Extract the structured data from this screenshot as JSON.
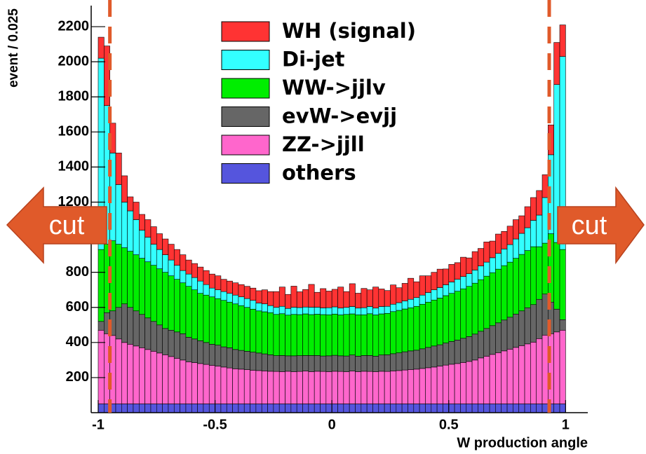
{
  "chart_data": {
    "type": "stacked_histogram",
    "x_label": "W production angle",
    "y_label": "event / 0.025",
    "xlim": [
      -1.03,
      1.095
    ],
    "ylim": [
      0,
      2320
    ],
    "xticks": [
      -1,
      -0.5,
      0,
      0.5,
      1
    ],
    "yticks": [
      200,
      400,
      600,
      800,
      1000,
      1200,
      1400,
      1600,
      1800,
      2000,
      2200
    ],
    "bins": [
      -1,
      -0.975,
      -0.95,
      -0.925,
      -0.9,
      -0.875,
      -0.85,
      -0.825,
      -0.8,
      -0.775,
      -0.75,
      -0.725,
      -0.7,
      -0.675,
      -0.65,
      -0.625,
      -0.6,
      -0.575,
      -0.55,
      -0.525,
      -0.5,
      -0.475,
      -0.45,
      -0.425,
      -0.4,
      -0.375,
      -0.35,
      -0.325,
      -0.3,
      -0.275,
      -0.25,
      -0.225,
      -0.2,
      -0.175,
      -0.15,
      -0.125,
      -0.1,
      -0.075,
      -0.05,
      -0.025,
      0,
      0.025,
      0.05,
      0.075,
      0.1,
      0.125,
      0.15,
      0.175,
      0.2,
      0.225,
      0.25,
      0.275,
      0.3,
      0.325,
      0.35,
      0.375,
      0.4,
      0.425,
      0.45,
      0.475,
      0.5,
      0.525,
      0.55,
      0.575,
      0.6,
      0.625,
      0.65,
      0.675,
      0.7,
      0.725,
      0.75,
      0.775,
      0.8,
      0.825,
      0.85,
      0.875,
      0.9,
      0.925,
      0.95,
      0.975,
      1
    ],
    "series": [
      {
        "name": "WH (signal)",
        "color": "#ff3333",
        "values": [
          120,
          340,
          170,
          180,
          150,
          80,
          100,
          90,
          100,
          100,
          90,
          90,
          90,
          90,
          90,
          80,
          80,
          80,
          80,
          80,
          80,
          70,
          70,
          70,
          70,
          70,
          70,
          70,
          80,
          80,
          90,
          110,
          80,
          120,
          90,
          100,
          130,
          85,
          110,
          95,
          100,
          120,
          90,
          130,
          85,
          110,
          95,
          120,
          100,
          90,
          110,
          85,
          100,
          120,
          90,
          110,
          95,
          100,
          105,
          90,
          100,
          95,
          110,
          90,
          105,
          100,
          115,
          95,
          110,
          100,
          105,
          110,
          100,
          120,
          130,
          140,
          130,
          170,
          240,
          180
        ]
      },
      {
        "name": "Di-jet",
        "color": "#33ffff",
        "values": [
          1090,
          790,
          500,
          340,
          260,
          230,
          200,
          160,
          140,
          120,
          110,
          100,
          90,
          80,
          70,
          70,
          70,
          70,
          60,
          50,
          50,
          50,
          50,
          50,
          50,
          50,
          50,
          45,
          45,
          40,
          40,
          42,
          38,
          41,
          40,
          39,
          42,
          40,
          38,
          40,
          41,
          39,
          40,
          42,
          38,
          40,
          41,
          39,
          42,
          40,
          42,
          44,
          46,
          48,
          50,
          52,
          55,
          58,
          60,
          62,
          65,
          68,
          70,
          72,
          75,
          78,
          80,
          85,
          90,
          95,
          100,
          110,
          120,
          130,
          150,
          180,
          260,
          450,
          900,
          1100
        ]
      },
      {
        "name": "WW->jjlv",
        "color": "#00ee00",
        "values": [
          410,
          390,
          400,
          360,
          320,
          320,
          320,
          320,
          320,
          320,
          320,
          320,
          310,
          300,
          290,
          290,
          280,
          270,
          270,
          270,
          265,
          265,
          260,
          260,
          255,
          250,
          245,
          240,
          240,
          240,
          235,
          238,
          232,
          236,
          234,
          237,
          233,
          235,
          236,
          234,
          235,
          233,
          237,
          234,
          236,
          232,
          238,
          235,
          234,
          236,
          240,
          242,
          244,
          246,
          250,
          254,
          258,
          262,
          266,
          270,
          274,
          278,
          282,
          286,
          290,
          294,
          298,
          302,
          306,
          310,
          314,
          318,
          322,
          326,
          330,
          300,
          290,
          390,
          380,
          400
        ]
      },
      {
        "name": "evW->evjj",
        "color": "#666666",
        "values": [
          50,
          120,
          140,
          180,
          220,
          210,
          200,
          190,
          180,
          170,
          160,
          150,
          150,
          150,
          150,
          140,
          135,
          130,
          125,
          120,
          120,
          115,
          115,
          110,
          107,
          105,
          103,
          100,
          97,
          94,
          90,
          92,
          88,
          91,
          90,
          89,
          92,
          90,
          88,
          90,
          91,
          89,
          90,
          92,
          88,
          90,
          91,
          89,
          93,
          95,
          98,
          101,
          104,
          106,
          108,
          112,
          116,
          120,
          122,
          126,
          130,
          134,
          138,
          142,
          148,
          152,
          158,
          164,
          170,
          176,
          182,
          190,
          198,
          206,
          214,
          224,
          234,
          180,
          130,
          60
        ]
      },
      {
        "name": "ZZ->jjll",
        "color": "#ff66cc",
        "values": [
          420,
          400,
          390,
          370,
          350,
          340,
          330,
          320,
          310,
          300,
          290,
          280,
          270,
          260,
          250,
          240,
          235,
          230,
          225,
          220,
          215,
          210,
          205,
          200,
          198,
          195,
          192,
          190,
          188,
          186,
          185,
          184,
          186,
          183,
          185,
          187,
          184,
          186,
          185,
          184,
          186,
          185,
          183,
          187,
          184,
          186,
          185,
          183,
          186,
          185,
          188,
          190,
          193,
          196,
          198,
          202,
          206,
          210,
          215,
          221,
          226,
          230,
          236,
          242,
          250,
          262,
          272,
          282,
          292,
          302,
          312,
          322,
          332,
          342,
          352,
          372,
          392,
          400,
          410,
          420
        ]
      },
      {
        "name": "others",
        "color": "#5555dd",
        "values": [
          50,
          50,
          50,
          50,
          50,
          50,
          50,
          50,
          50,
          50,
          50,
          50,
          50,
          50,
          50,
          50,
          50,
          50,
          50,
          50,
          50,
          50,
          50,
          50,
          50,
          50,
          50,
          50,
          50,
          50,
          50,
          50,
          50,
          50,
          50,
          50,
          50,
          50,
          50,
          50,
          50,
          50,
          50,
          50,
          50,
          50,
          50,
          50,
          50,
          50,
          50,
          50,
          50,
          50,
          50,
          50,
          50,
          50,
          50,
          50,
          50,
          50,
          50,
          50,
          50,
          50,
          50,
          50,
          50,
          50,
          50,
          50,
          50,
          50,
          50,
          50,
          50,
          50,
          50,
          50
        ]
      }
    ],
    "cut_lines": [
      -0.95,
      0.93
    ],
    "cut_color": "#e05a2a",
    "annotations": [
      "cut",
      "cut"
    ]
  }
}
